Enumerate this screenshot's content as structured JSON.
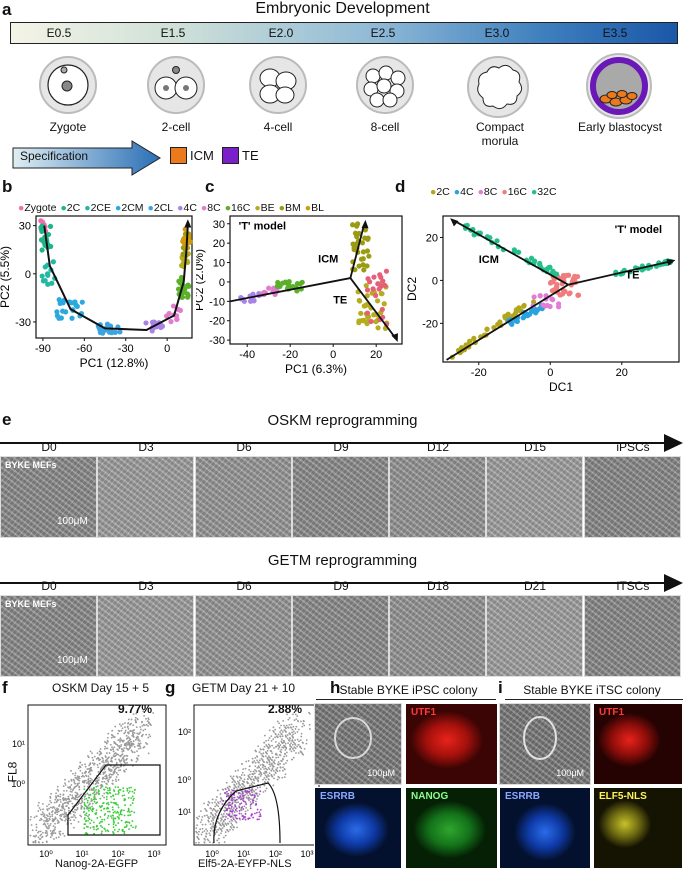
{
  "panels": {
    "a": "a",
    "b": "b",
    "c": "c",
    "d": "d",
    "e": "e",
    "f": "f",
    "g": "g",
    "h": "h",
    "i": "i"
  },
  "panel_a": {
    "title": "Embryonic Development",
    "stages": [
      "E0.5",
      "E1.5",
      "E2.0",
      "E2.5",
      "E3.0",
      "E3.5"
    ],
    "embryos": [
      "Zygote",
      "2-cell",
      "4-cell",
      "8-cell",
      "Compact morula",
      "Early blastocyst"
    ],
    "specification": "Specification",
    "legend": [
      {
        "label": "ICM",
        "color": "#ea7a1c"
      },
      {
        "label": "TE",
        "color": "#7a1fc9"
      }
    ]
  },
  "panel_b": {
    "legend": [
      "Zygote",
      "2C",
      "2CE",
      "2CM",
      "2CL",
      "4C",
      "8C",
      "16C",
      "BE",
      "BM",
      "BL"
    ],
    "legend_colors": [
      "#ee6fa9",
      "#1fb38a",
      "#23b8a3",
      "#2aa9df",
      "#3aa3e0",
      "#a982e8",
      "#e17ccf",
      "#5bb02a",
      "#b5ac1e",
      "#9a9a13",
      "#d19a0b"
    ]
  },
  "panel_c": {
    "model": "'T' model",
    "icm": "ICM",
    "te": "TE"
  },
  "panel_d": {
    "legend": [
      "2C",
      "4C",
      "8C",
      "16C",
      "32C"
    ],
    "legend_colors": [
      "#b3a61a",
      "#2aa2e0",
      "#e27cd6",
      "#f07d7d",
      "#23c08a"
    ],
    "model": "'T' model",
    "icm": "ICM",
    "te": "TE"
  },
  "chart_data": [
    {
      "type": "scatter",
      "title": "",
      "xlabel": "PC1 (12.8%)",
      "ylabel": "PC2 (5.5%)",
      "xticks": [
        "-90",
        "-60",
        "-30",
        "0"
      ],
      "yticks": [
        "30",
        "0",
        "-30"
      ],
      "xlim": [
        -95,
        18
      ],
      "ylim": [
        -40,
        36
      ]
    },
    {
      "type": "scatter",
      "title": "",
      "xlabel": "PC1 (6.3%)",
      "ylabel": "PC2 (2.0%)",
      "xticks": [
        "-40",
        "-20",
        "0",
        "20"
      ],
      "yticks": [
        "30",
        "20",
        "10",
        "0",
        "-10",
        "-20",
        "-30"
      ],
      "xlim": [
        -48,
        32
      ],
      "ylim": [
        -32,
        34
      ]
    },
    {
      "type": "scatter",
      "title": "",
      "xlabel": "DC1",
      "ylabel": "DC2",
      "xticks": [
        "-20",
        "0",
        "20"
      ],
      "yticks": [
        "20",
        "0",
        "-20"
      ],
      "xlim": [
        -30,
        36
      ],
      "ylim": [
        -38,
        30
      ]
    }
  ],
  "panel_e": {
    "oskm_title": "OSKM reprogramming",
    "oskm_days": [
      "D0",
      "D3",
      "D6",
      "D9",
      "D12",
      "D15",
      "iPSCs"
    ],
    "getm_title": "GETM reprogramming",
    "getm_days": [
      "D0",
      "D3",
      "D6",
      "D9",
      "D18",
      "D21",
      "iTSCs"
    ],
    "overlay": "BYKE MEFs",
    "scale": "100μM"
  },
  "panel_f": {
    "title": "OSKM Day 15 + 5",
    "percent": "9.77%",
    "ylabel": "FL8",
    "xlabel": "Nanog-2A-EGFP",
    "yticks": [
      "10¹",
      "10⁰"
    ],
    "xticks": [
      "10⁰",
      "10¹",
      "10²",
      "10³"
    ]
  },
  "panel_g": {
    "title": "GETM Day 21 + 10",
    "percent": "2.88%",
    "xlabel": "Elf5-2A-EYFP-NLS",
    "yticks": [
      "10²",
      "10⁰",
      "10¹"
    ],
    "xticks": [
      "10⁰",
      "10¹",
      "10²",
      "10³"
    ]
  },
  "panel_h": {
    "title": "Stable BYKE iPSC colony",
    "scale": "100μM",
    "stains": [
      "UTF1",
      "ESRRB",
      "NANOG"
    ]
  },
  "panel_i": {
    "title": "Stable BYKE iTSC colony",
    "scale": "100μM",
    "stains": [
      "UTF1",
      "ESRRB",
      "ELF5-NLS"
    ]
  }
}
